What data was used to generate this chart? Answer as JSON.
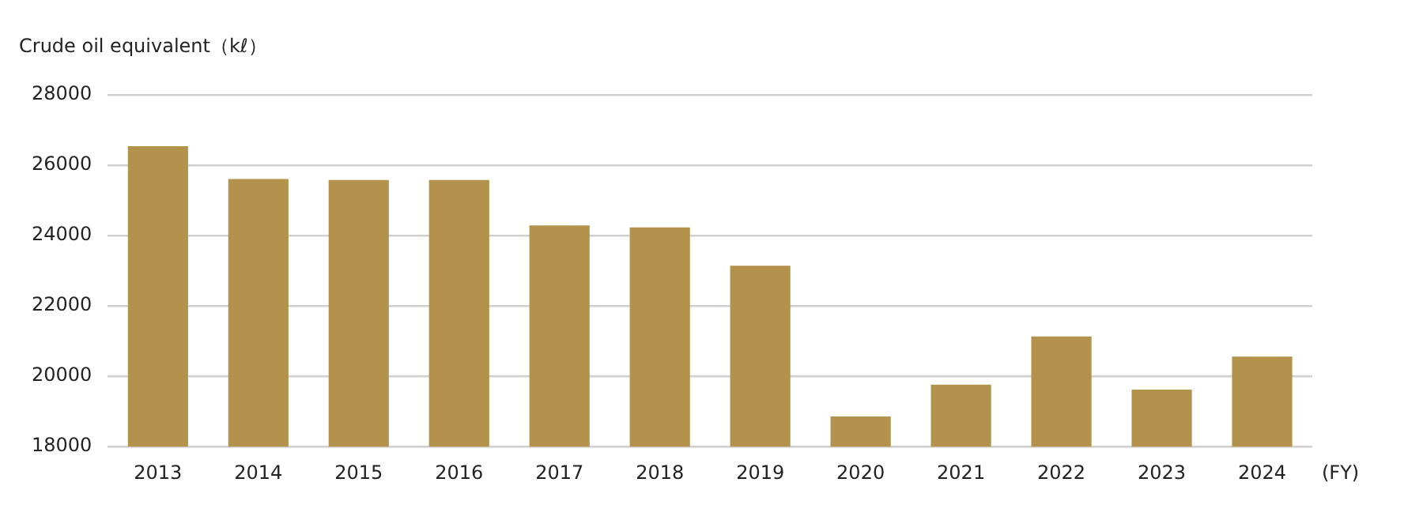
{
  "chart_data": {
    "type": "bar",
    "ylabel": "Crude oil equivalent（kℓ）",
    "xlabel": "(FY)",
    "categories": [
      "2013",
      "2014",
      "2015",
      "2016",
      "2017",
      "2018",
      "2019",
      "2020",
      "2021",
      "2022",
      "2023",
      "2024"
    ],
    "values": [
      26540,
      25610,
      25580,
      25580,
      24290,
      24230,
      23140,
      18860,
      19760,
      21130,
      19620,
      20560
    ],
    "color": "#b3924b",
    "ylim": [
      18000,
      28000
    ],
    "yticks": [
      18000,
      20000,
      22000,
      24000,
      26000,
      28000
    ],
    "grid": "y"
  }
}
